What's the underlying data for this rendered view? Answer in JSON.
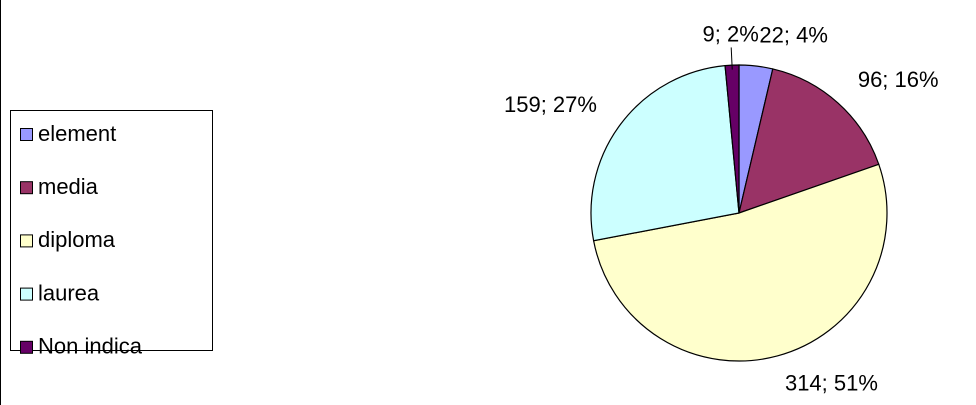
{
  "chart_data": {
    "type": "pie",
    "categories": [
      "element",
      "media",
      "diploma",
      "laurea",
      "Non indica"
    ],
    "values": [
      22,
      96,
      314,
      159,
      9
    ],
    "value_labels": [
      "22; 4%",
      "96; 16%",
      "314; 51%",
      "159; 27%",
      "9; 2%"
    ],
    "colors": [
      "#9999ff",
      "#993366",
      "#ffffcc",
      "#ccffff",
      "#660066"
    ],
    "legend": "left"
  }
}
